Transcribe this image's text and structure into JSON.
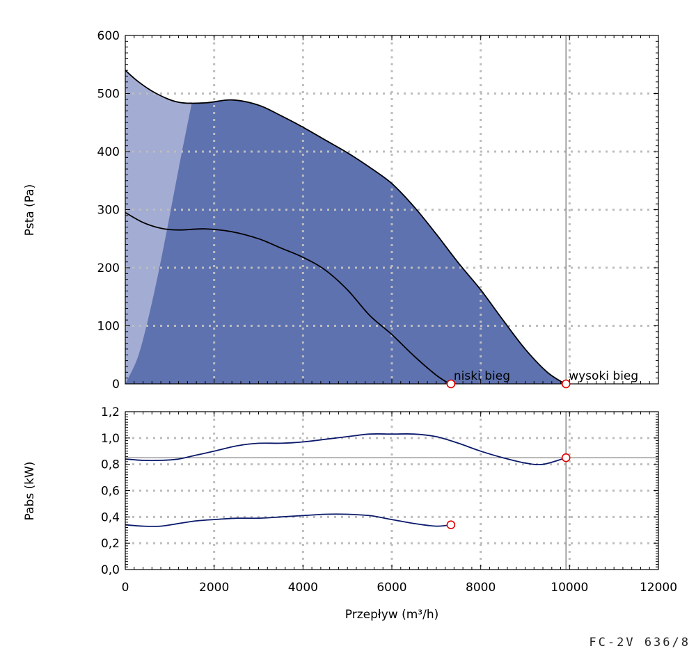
{
  "chart_data": [
    {
      "type": "area",
      "x_range": [
        0,
        12000
      ],
      "ylim": [
        0,
        600
      ],
      "y_ticks": [
        "0",
        "100",
        "200",
        "300",
        "400",
        "500",
        "600"
      ],
      "ylabel": "Psta (Pa)",
      "grid": true,
      "colors": {
        "area_fill": "#5e72b0",
        "unstable_fill": "#a3acd2",
        "curve": "#000000",
        "marker": "#e00000"
      },
      "series": [
        {
          "name": "wysoki bieg",
          "x": [
            0,
            300,
            700,
            1200,
            1800,
            2400,
            3000,
            3500,
            4000,
            4500,
            5000,
            5500,
            6000,
            6500,
            7000,
            7500,
            8000,
            8500,
            9000,
            9500,
            9900
          ],
          "y": [
            540,
            520,
            500,
            485,
            484,
            489,
            480,
            462,
            442,
            420,
            398,
            373,
            345,
            305,
            258,
            208,
            162,
            110,
            60,
            20,
            0
          ]
        },
        {
          "name": "niski bieg",
          "x": [
            0,
            400,
            800,
            1200,
            1800,
            2400,
            3000,
            3500,
            4000,
            4500,
            5000,
            5500,
            6000,
            6500,
            7000,
            7300
          ],
          "y": [
            295,
            278,
            268,
            265,
            267,
            262,
            250,
            234,
            218,
            196,
            162,
            118,
            85,
            48,
            15,
            0
          ]
        }
      ],
      "unstable_region": {
        "x": [
          0,
          300,
          600,
          900,
          1200,
          1500
        ],
        "y": [
          0,
          50,
          140,
          250,
          370,
          485
        ]
      },
      "operating_points": [
        {
          "label": "niski bieg",
          "x": 7330,
          "y": 0
        },
        {
          "label": "wysoki bieg",
          "x": 9920,
          "y": 0
        }
      ],
      "vertical_marker_x": 9920
    },
    {
      "type": "line",
      "x_range": [
        0,
        12000
      ],
      "x_ticks": [
        "0",
        "2000",
        "4000",
        "6000",
        "8000",
        "10000",
        "12000"
      ],
      "xlabel": "Przepływ (m³/h)",
      "ylim": [
        0,
        1.2
      ],
      "y_ticks": [
        "0,0",
        "0,2",
        "0,4",
        "0,6",
        "0,8",
        "1,0",
        "1,2"
      ],
      "ylabel": "Pabs (kW)",
      "grid": true,
      "colors": {
        "curve": "#0b1a6b",
        "marker": "#e00000",
        "reference": "#777777"
      },
      "series": [
        {
          "name": "wysoki bieg",
          "x": [
            0,
            400,
            800,
            1200,
            1600,
            2000,
            2500,
            3000,
            3500,
            4000,
            4500,
            5000,
            5500,
            6000,
            6500,
            7000,
            7500,
            8000,
            8500,
            9000,
            9400,
            9920
          ],
          "y": [
            0.84,
            0.83,
            0.83,
            0.84,
            0.87,
            0.9,
            0.94,
            0.96,
            0.96,
            0.97,
            0.99,
            1.01,
            1.03,
            1.03,
            1.03,
            1.01,
            0.96,
            0.9,
            0.85,
            0.81,
            0.8,
            0.85
          ]
        },
        {
          "name": "niski bieg",
          "x": [
            0,
            400,
            800,
            1200,
            1600,
            2000,
            2500,
            3000,
            3500,
            4000,
            4500,
            5000,
            5500,
            6000,
            6500,
            7000,
            7330
          ],
          "y": [
            0.34,
            0.33,
            0.33,
            0.35,
            0.37,
            0.38,
            0.39,
            0.39,
            0.4,
            0.41,
            0.42,
            0.42,
            0.41,
            0.38,
            0.35,
            0.33,
            0.34
          ]
        }
      ],
      "operating_points": [
        {
          "x": 7330,
          "y": 0.34
        },
        {
          "x": 9920,
          "y": 0.85
        }
      ],
      "reference_y": 0.85,
      "vertical_marker_x": 9920
    }
  ],
  "footer": {
    "model": "FC-2V 636/8"
  }
}
